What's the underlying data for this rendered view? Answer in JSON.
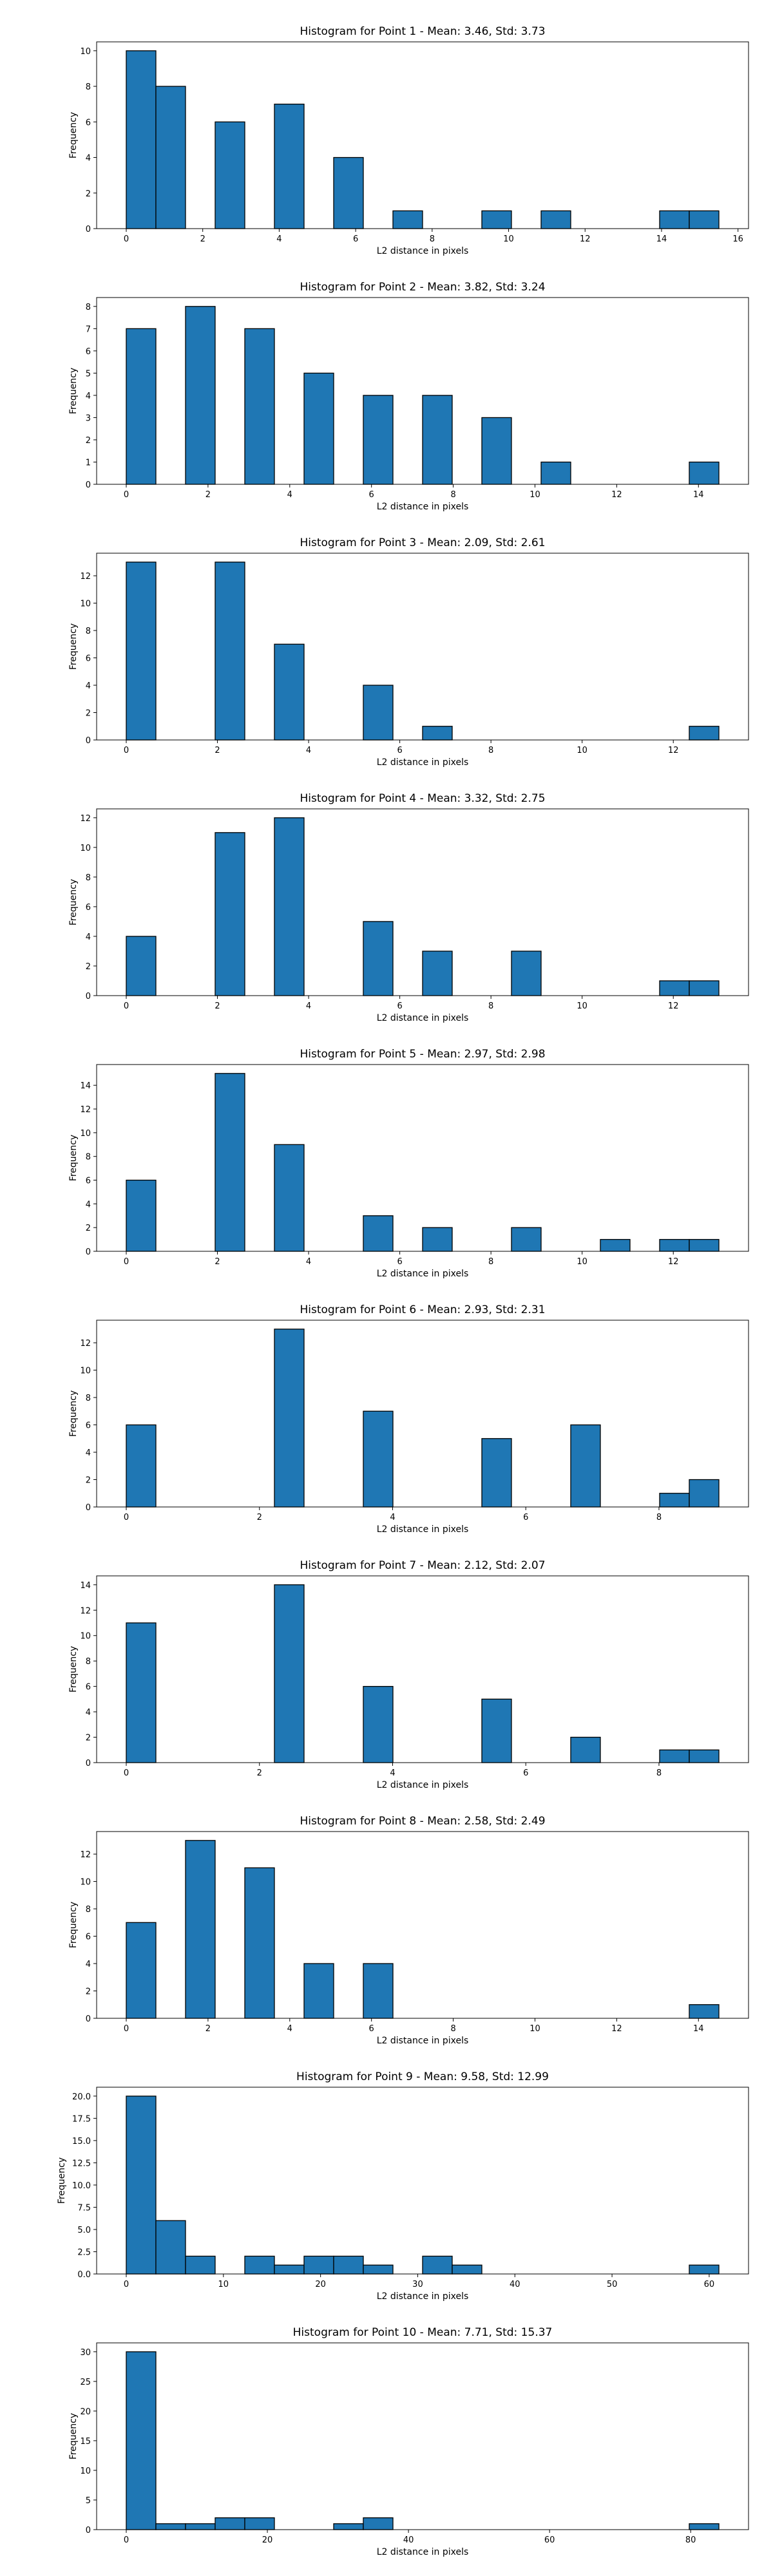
{
  "figure": {
    "bar_color": "#1f77b4",
    "edge_color": "#000000",
    "background": "#ffffff"
  },
  "chart_data": [
    {
      "type": "bar",
      "title": "Histogram for Point 1 - Mean: 3.46, Std: 3.73",
      "xlabel": "L2 distance in pixels",
      "ylabel": "Frequency",
      "bins": 20,
      "bin_range": [
        0,
        15.5
      ],
      "counts": [
        10,
        8,
        0,
        6,
        0,
        7,
        0,
        4,
        0,
        1,
        0,
        0,
        1,
        0,
        1,
        0,
        0,
        0,
        1,
        1
      ],
      "xlim": [
        -0.775,
        16.275
      ],
      "xticks": [
        0,
        2,
        4,
        6,
        8,
        10,
        12,
        14,
        16
      ],
      "ylim": [
        0,
        10.5
      ],
      "yticks": [
        0,
        2,
        4,
        6,
        8,
        10
      ]
    },
    {
      "type": "bar",
      "title": "Histogram for Point 2 - Mean: 3.82, Std: 3.24",
      "xlabel": "L2 distance in pixels",
      "ylabel": "Frequency",
      "bins": 20,
      "bin_range": [
        0,
        14.5
      ],
      "counts": [
        7,
        0,
        8,
        0,
        7,
        0,
        5,
        0,
        4,
        0,
        4,
        0,
        3,
        0,
        1,
        0,
        0,
        0,
        0,
        1
      ],
      "xlim": [
        -0.725,
        15.225
      ],
      "xticks": [
        0,
        2,
        4,
        6,
        8,
        10,
        12,
        14
      ],
      "ylim": [
        0,
        8.4
      ],
      "yticks": [
        0,
        1,
        2,
        3,
        4,
        5,
        6,
        7,
        8
      ]
    },
    {
      "type": "bar",
      "title": "Histogram for Point 3 - Mean: 2.09, Std: 2.61",
      "xlabel": "L2 distance in pixels",
      "ylabel": "Frequency",
      "bins": 20,
      "bin_range": [
        0,
        13
      ],
      "counts": [
        13,
        0,
        0,
        13,
        0,
        7,
        0,
        0,
        4,
        0,
        1,
        0,
        0,
        0,
        0,
        0,
        0,
        0,
        0,
        1
      ],
      "bar_counts_note": "",
      "xlim": [
        -0.65,
        13.65
      ],
      "xticks": [
        0,
        2,
        4,
        6,
        8,
        10,
        12
      ],
      "ylim": [
        0,
        13.65
      ],
      "yticks": [
        0,
        2,
        4,
        6,
        8,
        10,
        12
      ]
    },
    {
      "type": "bar",
      "title": "Histogram for Point 4 - Mean: 3.32, Std: 2.75",
      "xlabel": "L2 distance in pixels",
      "ylabel": "Frequency",
      "bins": 20,
      "bin_range": [
        0,
        13
      ],
      "counts": [
        4,
        0,
        0,
        11,
        0,
        12,
        0,
        0,
        5,
        0,
        3,
        0,
        0,
        3,
        0,
        0,
        0,
        0,
        1,
        1
      ],
      "xlim": [
        -0.65,
        13.65
      ],
      "xticks": [
        0,
        2,
        4,
        6,
        8,
        10,
        12
      ],
      "ylim": [
        0,
        12.6
      ],
      "yticks": [
        0,
        2,
        4,
        6,
        8,
        10,
        12
      ]
    },
    {
      "type": "bar",
      "title": "Histogram for Point 5 - Mean: 2.97, Std: 2.98",
      "xlabel": "L2 distance in pixels",
      "ylabel": "Frequency",
      "bins": 20,
      "bin_range": [
        0,
        13
      ],
      "counts": [
        6,
        0,
        0,
        15,
        0,
        9,
        0,
        0,
        3,
        0,
        2,
        0,
        0,
        2,
        0,
        0,
        1,
        0,
        1,
        1
      ],
      "xlim": [
        -0.65,
        13.65
      ],
      "xticks": [
        0,
        2,
        4,
        6,
        8,
        10,
        12
      ],
      "ylim": [
        0,
        15.75
      ],
      "yticks": [
        0,
        2,
        4,
        6,
        8,
        10,
        12,
        14
      ]
    },
    {
      "type": "bar",
      "title": "Histogram for Point 6 - Mean: 2.93, Std: 2.31",
      "xlabel": "L2 distance in pixels",
      "ylabel": "Frequency",
      "bins": 20,
      "bin_range": [
        0,
        8.9
      ],
      "counts": [
        6,
        0,
        0,
        0,
        0,
        13,
        0,
        0,
        7,
        0,
        0,
        0,
        5,
        0,
        0,
        6,
        0,
        0,
        1,
        2
      ],
      "xlim": [
        -0.445,
        9.345
      ],
      "xticks": [
        0,
        2,
        4,
        6,
        8
      ],
      "ylim": [
        0,
        13.65
      ],
      "yticks": [
        0,
        2,
        4,
        6,
        8,
        10,
        12
      ]
    },
    {
      "type": "bar",
      "title": "Histogram for Point 7 - Mean: 2.12, Std: 2.07",
      "xlabel": "L2 distance in pixels",
      "ylabel": "Frequency",
      "bins": 20,
      "bin_range": [
        0,
        8.9
      ],
      "counts": [
        11,
        0,
        0,
        0,
        0,
        14,
        0,
        0,
        6,
        0,
        0,
        0,
        5,
        0,
        0,
        2,
        0,
        0,
        1,
        1
      ],
      "xlim": [
        -0.445,
        9.345
      ],
      "xticks": [
        0,
        2,
        4,
        6,
        8
      ],
      "ylim": [
        0,
        14.7
      ],
      "yticks": [
        0,
        2,
        4,
        6,
        8,
        10,
        12,
        14
      ]
    },
    {
      "type": "bar",
      "title": "Histogram for Point 8 - Mean: 2.58, Std: 2.49",
      "xlabel": "L2 distance in pixels",
      "ylabel": "Frequency",
      "bins": 20,
      "bin_range": [
        0,
        14.5
      ],
      "counts": [
        7,
        0,
        13,
        0,
        11,
        0,
        4,
        0,
        4,
        0,
        0,
        0,
        0,
        0,
        0,
        0,
        0,
        0,
        0,
        1
      ],
      "xlim": [
        -0.725,
        15.225
      ],
      "xticks": [
        0,
        2,
        4,
        6,
        8,
        10,
        12,
        14
      ],
      "ylim": [
        0,
        13.65
      ],
      "yticks": [
        0,
        2,
        4,
        6,
        8,
        10,
        12
      ]
    },
    {
      "type": "bar",
      "title": "Histogram for Point 9 - Mean: 9.58, Std: 12.99",
      "xlabel": "L2 distance in pixels",
      "ylabel": "Frequency",
      "bins": 20,
      "bin_range": [
        0,
        61
      ],
      "counts": [
        20,
        6,
        2,
        0,
        2,
        1,
        2,
        2,
        1,
        0,
        2,
        1,
        0,
        0,
        0,
        0,
        0,
        0,
        0,
        1
      ],
      "xlim": [
        -3.05,
        64.05
      ],
      "xticks": [
        0,
        10,
        20,
        30,
        40,
        50,
        60
      ],
      "ytick_labels": [
        "0.0",
        "2.5",
        "5.0",
        "7.5",
        "10.0",
        "12.5",
        "15.0",
        "17.5",
        "20.0"
      ],
      "ylim": [
        0,
        21
      ],
      "yticks": [
        0,
        2.5,
        5,
        7.5,
        10,
        12.5,
        15,
        17.5,
        20
      ]
    },
    {
      "type": "bar",
      "title": "Histogram for Point 10 - Mean: 7.71, Std: 15.37",
      "xlabel": "L2 distance in pixels",
      "ylabel": "Frequency",
      "bins": 20,
      "bin_range": [
        0,
        84
      ],
      "counts": [
        30,
        1,
        1,
        2,
        2,
        0,
        0,
        1,
        2,
        0,
        0,
        0,
        0,
        0,
        0,
        0,
        0,
        0,
        0,
        1
      ],
      "xlim": [
        -4.2,
        88.2
      ],
      "xticks": [
        0,
        20,
        40,
        60,
        80
      ],
      "ylim": [
        0,
        31.5
      ],
      "yticks": [
        0,
        5,
        10,
        15,
        20,
        25,
        30
      ]
    }
  ]
}
